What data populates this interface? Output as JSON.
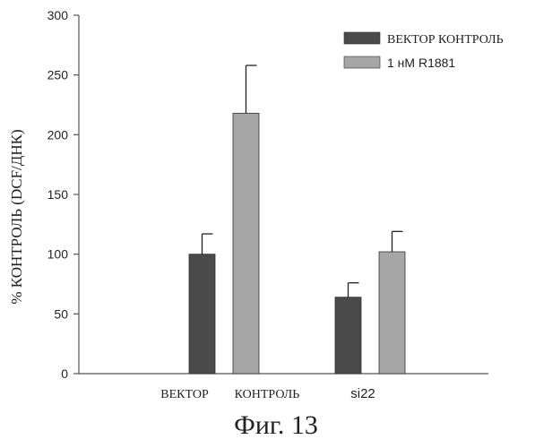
{
  "chart_data": {
    "type": "bar",
    "categories": [
      "ВЕКТОР КОНТРОЛЬ",
      "si22"
    ],
    "category_labels": [
      "ВЕКТОР",
      "КОНТРОЛЬ",
      "si22"
    ],
    "ylabel": "% КОНТРОЛЬ (DCF/ДНК)",
    "ylim": [
      0,
      300
    ],
    "yticks": [
      0,
      50,
      100,
      150,
      200,
      250,
      300
    ],
    "grid": false,
    "legend_position": "top-right",
    "series": [
      {
        "name": "ВЕКТОР КОНТРОЛЬ",
        "values": [
          100,
          64
        ],
        "errors": [
          17,
          12
        ],
        "color": "#4a4a4a"
      },
      {
        "name": "1 нМ R1881",
        "values": [
          218,
          102
        ],
        "errors": [
          40,
          17
        ],
        "color": "#a6a6a6"
      }
    ]
  },
  "caption": "Фиг. 13"
}
